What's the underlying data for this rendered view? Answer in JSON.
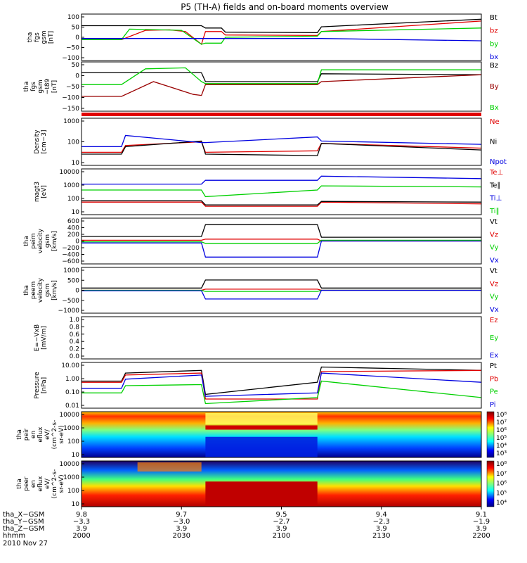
{
  "title": "P5 (TH-A) fields and on-board moments overview",
  "date": "2010 Nov 27",
  "colors": {
    "black": "#000000",
    "red": "#e00000",
    "green": "#00d000",
    "blue": "#0000e0",
    "darkred": "#990000"
  },
  "chart_data": [
    {
      "type": "line",
      "ylabel": [
        "tha",
        "fgs",
        "gsm",
        "[nT]"
      ],
      "yticks": [
        "100",
        "50",
        "0",
        "−50",
        "−100"
      ],
      "ylim": [
        -100,
        100
      ],
      "series": [
        {
          "name": "Bt",
          "color": "black",
          "x": [
            0,
            30,
            31,
            35,
            36,
            59,
            60,
            100
          ],
          "y": [
            50,
            50,
            40,
            40,
            22,
            20,
            45,
            78
          ]
        },
        {
          "name": "bz",
          "color": "red",
          "x": [
            0,
            10,
            16,
            22,
            26,
            30,
            31,
            35,
            36,
            59,
            60,
            100
          ],
          "y": [
            -10,
            -10,
            30,
            32,
            25,
            -30,
            25,
            25,
            10,
            8,
            25,
            70
          ]
        },
        {
          "name": "by",
          "color": "green",
          "x": [
            0,
            10,
            12,
            25,
            30,
            31,
            35,
            36,
            59,
            60,
            100
          ],
          "y": [
            -10,
            -10,
            35,
            30,
            -30,
            -25,
            -25,
            0,
            5,
            25,
            40
          ]
        },
        {
          "name": "bx",
          "color": "blue",
          "x": [
            0,
            30,
            59,
            60,
            100
          ],
          "y": [
            -5,
            -5,
            -5,
            -5,
            -15
          ]
        }
      ]
    },
    {
      "type": "line",
      "ylabel": [
        "tha",
        "fgs",
        "gsm",
        "−t89",
        "[nT]"
      ],
      "yticks": [
        "50",
        "0",
        "−50",
        "−100",
        "−150"
      ],
      "ylim": [
        -175,
        75
      ],
      "series": [
        {
          "name": "Bz",
          "color": "black",
          "x": [
            0,
            30,
            31,
            59,
            60,
            100
          ],
          "y": [
            20,
            20,
            -25,
            -25,
            15,
            10
          ]
        },
        {
          "name": "By",
          "color": "darkred",
          "x": [
            0,
            10,
            18,
            28,
            30,
            31,
            59,
            60,
            100
          ],
          "y": [
            -100,
            -100,
            -25,
            -90,
            -95,
            -40,
            -40,
            -25,
            10
          ]
        },
        {
          "name": "Bx",
          "color": "green",
          "x": [
            0,
            10,
            16,
            26,
            30,
            31,
            59,
            60,
            100
          ],
          "y": [
            -40,
            -40,
            40,
            45,
            -25,
            -35,
            -35,
            35,
            35
          ]
        }
      ]
    },
    {
      "type": "line",
      "ylabel": [
        "Density",
        "[cm−3]"
      ],
      "yticks": [
        "1000",
        "100",
        "10"
      ],
      "ylim": [
        3,
        1000
      ],
      "log": true,
      "series": [
        {
          "name": "Ne",
          "color": "red",
          "x": [
            0,
            10,
            11,
            30,
            31,
            59,
            60,
            100
          ],
          "y": [
            15,
            15,
            35,
            55,
            15,
            18,
            45,
            25
          ]
        },
        {
          "name": "Ni",
          "color": "black",
          "x": [
            0,
            10,
            11,
            30,
            31,
            59,
            60,
            100
          ],
          "y": [
            12,
            12,
            30,
            60,
            12,
            10,
            45,
            20
          ]
        },
        {
          "name": "Npot",
          "color": "blue",
          "x": [
            0,
            10,
            11,
            30,
            31,
            59,
            60,
            100
          ],
          "y": [
            30,
            30,
            120,
            50,
            50,
            100,
            60,
            40
          ]
        }
      ]
    },
    {
      "type": "line",
      "ylabel": [
        "magt3",
        "[eV]"
      ],
      "yticks": [
        "10000",
        "1000",
        "100",
        "10"
      ],
      "ylim": [
        5,
        10000
      ],
      "log": true,
      "series": [
        {
          "name": "Te⊥",
          "color": "red",
          "x": [
            0,
            30,
            31,
            59,
            60,
            100
          ],
          "y": [
            40,
            40,
            20,
            20,
            40,
            30
          ]
        },
        {
          "name": "Te∥",
          "color": "black",
          "x": [
            0,
            30,
            31,
            59,
            60,
            100
          ],
          "y": [
            50,
            50,
            25,
            25,
            45,
            40
          ]
        },
        {
          "name": "Ti⊥",
          "color": "blue",
          "x": [
            0,
            30,
            31,
            59,
            60,
            100
          ],
          "y": [
            800,
            800,
            1500,
            1500,
            3000,
            2000
          ]
        },
        {
          "name": "Ti∥",
          "color": "green",
          "x": [
            0,
            30,
            31,
            59,
            60,
            100
          ],
          "y": [
            300,
            300,
            100,
            300,
            600,
            500
          ]
        }
      ]
    },
    {
      "type": "line",
      "ylabel": [
        "tha",
        "peim",
        "velocity",
        "gsm",
        "[km/s]"
      ],
      "yticks": [
        "600",
        "400",
        "200",
        "0",
        "−200",
        "−400",
        "−600"
      ],
      "ylim": [
        -600,
        600
      ],
      "series": [
        {
          "name": "Vt",
          "color": "black",
          "x": [
            0,
            30,
            31,
            59,
            60,
            100
          ],
          "y": [
            120,
            120,
            430,
            430,
            100,
            100
          ]
        },
        {
          "name": "Vz",
          "color": "red",
          "x": [
            0,
            30,
            31,
            59,
            60,
            100
          ],
          "y": [
            20,
            20,
            50,
            50,
            0,
            0
          ]
        },
        {
          "name": "Vy",
          "color": "green",
          "x": [
            0,
            30,
            31,
            59,
            60,
            100
          ],
          "y": [
            -20,
            -20,
            -60,
            -60,
            20,
            20
          ]
        },
        {
          "name": "Vx",
          "color": "blue",
          "x": [
            0,
            30,
            31,
            59,
            60,
            100
          ],
          "y": [
            -50,
            -50,
            -420,
            -420,
            0,
            0
          ]
        }
      ]
    },
    {
      "type": "line",
      "ylabel": [
        "tha",
        "peem",
        "velocity",
        "gsm",
        "[km/s]"
      ],
      "yticks": [
        "1000",
        "500",
        "0",
        "−500",
        "−1000"
      ],
      "ylim": [
        -1000,
        1000
      ],
      "series": [
        {
          "name": "Vt",
          "color": "black",
          "x": [
            0,
            30,
            31,
            59,
            60,
            100
          ],
          "y": [
            100,
            100,
            450,
            450,
            100,
            100
          ]
        },
        {
          "name": "Vz",
          "color": "red",
          "x": [
            0,
            30,
            31,
            59,
            60,
            100
          ],
          "y": [
            0,
            0,
            50,
            50,
            0,
            0
          ]
        },
        {
          "name": "Vy",
          "color": "green",
          "x": [
            0,
            30,
            31,
            59,
            60,
            100
          ],
          "y": [
            0,
            0,
            -50,
            -50,
            0,
            0
          ]
        },
        {
          "name": "Vx",
          "color": "blue",
          "x": [
            0,
            30,
            31,
            59,
            60,
            100
          ],
          "y": [
            -20,
            -20,
            -380,
            -380,
            0,
            0
          ]
        }
      ]
    },
    {
      "type": "line",
      "ylabel": [
        "E=−VxB",
        "[mV/m]"
      ],
      "yticks": [
        "1.0",
        "0.8",
        "0.6",
        "0.4",
        "0.2",
        "0.0"
      ],
      "ylim": [
        0,
        1
      ],
      "series": [
        {
          "name": "Ez",
          "color": "red"
        },
        {
          "name": "Ey",
          "color": "green"
        },
        {
          "name": "Ex",
          "color": "blue"
        }
      ]
    },
    {
      "type": "line",
      "ylabel": [
        "Pressure",
        "[nPa]"
      ],
      "yticks": [
        "10.00",
        "1.00",
        "0.10",
        "0.01"
      ],
      "ylim": [
        0.01,
        10
      ],
      "log": true,
      "series": [
        {
          "name": "Pt",
          "color": "black",
          "x": [
            0,
            10,
            11,
            30,
            31,
            59,
            60,
            100
          ],
          "y": [
            0.6,
            0.6,
            2,
            3,
            0.08,
            0.5,
            5,
            3
          ]
        },
        {
          "name": "Pb",
          "color": "red",
          "x": [
            0,
            10,
            11,
            30,
            31,
            59,
            60,
            100
          ],
          "y": [
            0.5,
            0.5,
            1.5,
            2,
            0.04,
            0.04,
            2.5,
            3
          ]
        },
        {
          "name": "Pe",
          "color": "green",
          "x": [
            0,
            10,
            11,
            30,
            31,
            59,
            60,
            100
          ],
          "y": [
            0.1,
            0.1,
            0.3,
            0.35,
            0.02,
            0.05,
            0.6,
            0.05
          ]
        },
        {
          "name": "Pi",
          "color": "blue",
          "x": [
            0,
            10,
            11,
            30,
            31,
            59,
            60,
            100
          ],
          "y": [
            0.2,
            0.2,
            0.8,
            1.5,
            0.06,
            0.1,
            2,
            0.5
          ]
        }
      ]
    },
    {
      "type": "heatmap",
      "ylabel": [
        "tha",
        "peir",
        "en",
        "eflux",
        "eV/",
        "(cm^2-s-",
        "sr-eV)"
      ],
      "yticks": [
        "10000",
        "1000",
        "100",
        "10"
      ],
      "ylim": [
        8,
        20000
      ],
      "log": true,
      "colorbar": [
        "10⁸",
        "10⁷",
        "10⁶",
        "10⁵",
        "10⁴",
        "10³"
      ]
    },
    {
      "type": "heatmap",
      "ylabel": [
        "tha",
        "peer",
        "en",
        "eflux",
        "eV/",
        "(cm^2-s-",
        "sr-eV)"
      ],
      "yticks": [
        "10000",
        "1000",
        "100",
        "10"
      ],
      "ylim": [
        8,
        20000
      ],
      "log": true,
      "colorbar": [
        "10⁸",
        "10⁷",
        "10⁶",
        "10⁵",
        "10⁴"
      ]
    }
  ],
  "xaxis": {
    "rows": [
      {
        "label": "tha_X−GSM",
        "values": [
          "9.8",
          "9.7",
          "9.5",
          "9.4",
          "9.1"
        ]
      },
      {
        "label": "tha_Y−GSM",
        "values": [
          "−3.3",
          "−3.0",
          "−2.7",
          "−2.3",
          "−1.9"
        ]
      },
      {
        "label": "tha_Z−GSM",
        "values": [
          "3.9",
          "3.9",
          "3.9",
          "3.9",
          "3.9"
        ]
      },
      {
        "label": "hhmm",
        "values": [
          "2000",
          "2030",
          "2100",
          "2130",
          "2200"
        ]
      }
    ]
  }
}
